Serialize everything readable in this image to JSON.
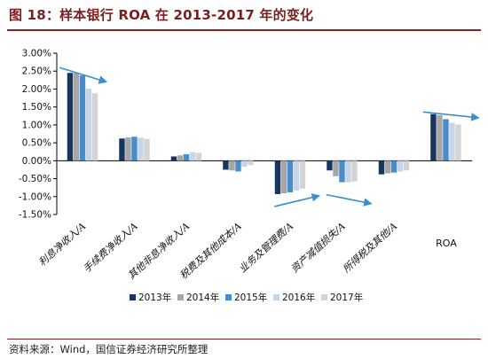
{
  "title": "图 18：样本银行 ROA 在 2013-2017 年的变化",
  "source": "资料来源：Wind，国信证券经济研究所整理",
  "colors": {
    "title": "#7a1e1e",
    "rule": "#8b2323",
    "arrow": "#3a8fd0",
    "series": [
      "#16365c",
      "#a6a6a6",
      "#4a8cc7",
      "#c6d6ea",
      "#d4d4d4"
    ]
  },
  "chart_data": {
    "type": "bar",
    "categories": [
      "利息净收入/A",
      "手续费净收入/A",
      "其他非息净收入/A",
      "税费及其他成本/A",
      "业务及管理费/A",
      "资产减值损失/A",
      "所得税及其他/A",
      "ROA"
    ],
    "series": [
      {
        "name": "2013年",
        "values": [
          2.45,
          0.62,
          0.12,
          -0.25,
          -0.93,
          -0.27,
          -0.38,
          1.3
        ]
      },
      {
        "name": "2014年",
        "values": [
          2.45,
          0.65,
          0.15,
          -0.27,
          -0.91,
          -0.43,
          -0.35,
          1.27
        ]
      },
      {
        "name": "2015年",
        "values": [
          2.38,
          0.67,
          0.18,
          -0.3,
          -0.88,
          -0.6,
          -0.33,
          1.16
        ]
      },
      {
        "name": "2016年",
        "values": [
          2.01,
          0.64,
          0.24,
          -0.17,
          -0.83,
          -0.6,
          -0.3,
          1.06
        ]
      },
      {
        "name": "2017年",
        "values": [
          1.88,
          0.61,
          0.22,
          -0.12,
          -0.78,
          -0.58,
          -0.27,
          1.01
        ]
      }
    ],
    "yticks": [
      "3.00%",
      "2.50%",
      "2.00%",
      "1.50%",
      "1.00%",
      "0.50%",
      "0.00%",
      "-0.50%",
      "-1.00%",
      "-1.50%"
    ],
    "ylim": [
      -1.5,
      3.0
    ],
    "xlabel": "",
    "ylabel": "",
    "grid": false,
    "legend_position": "bottom-center",
    "trend_arrows": [
      {
        "category": "利息净收入/A",
        "direction": "down"
      },
      {
        "category": "业务及管理费/A",
        "direction": "up"
      },
      {
        "category": "资产减值损失/A",
        "direction": "down"
      },
      {
        "category": "ROA",
        "direction": "down"
      }
    ]
  }
}
